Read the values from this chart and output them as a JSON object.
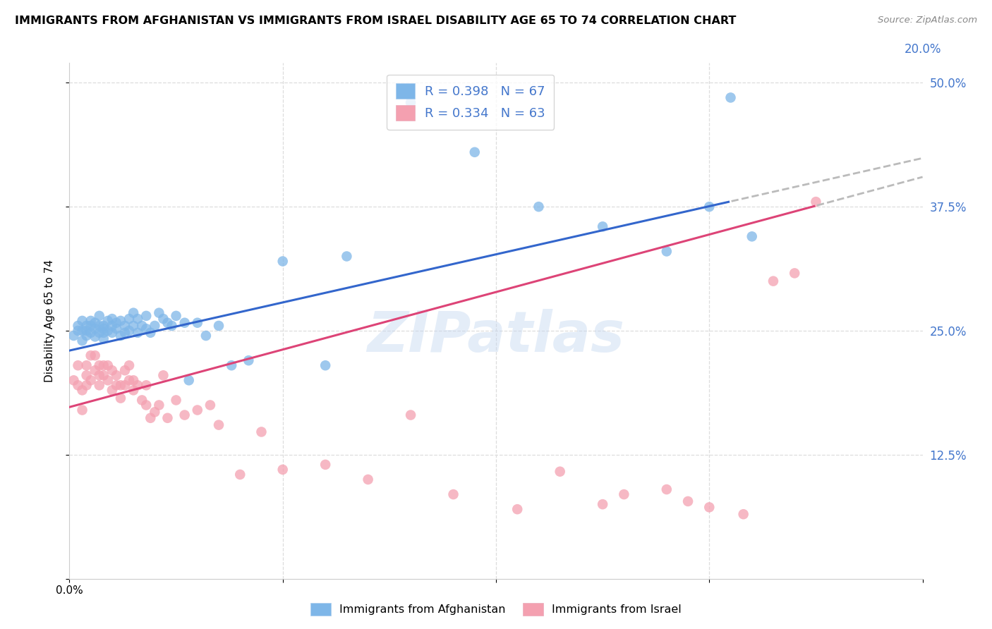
{
  "title": "IMMIGRANTS FROM AFGHANISTAN VS IMMIGRANTS FROM ISRAEL DISABILITY AGE 65 TO 74 CORRELATION CHART",
  "source": "Source: ZipAtlas.com",
  "ylabel": "Disability Age 65 to 74",
  "xlim": [
    0.0,
    0.2
  ],
  "ylim": [
    0.0,
    0.52
  ],
  "afghanistan_color": "#7EB6E8",
  "israel_color": "#F4A0B0",
  "afghanistan_R": 0.398,
  "afghanistan_N": 67,
  "israel_R": 0.334,
  "israel_N": 63,
  "afghanistan_line_color": "#3366CC",
  "israel_line_color": "#DD4477",
  "trend_extension_color": "#BBBBBB",
  "watermark": "ZIPatlas",
  "legend_label_afg": "Immigrants from Afghanistan",
  "legend_label_isr": "Immigrants from Israel",
  "right_ytick_color": "#4477CC",
  "right_xtick_color": "#4477CC",
  "afghanistan_x": [
    0.001,
    0.002,
    0.002,
    0.003,
    0.003,
    0.003,
    0.004,
    0.004,
    0.004,
    0.005,
    0.005,
    0.005,
    0.006,
    0.006,
    0.006,
    0.007,
    0.007,
    0.007,
    0.008,
    0.008,
    0.008,
    0.008,
    0.009,
    0.009,
    0.01,
    0.01,
    0.01,
    0.011,
    0.011,
    0.012,
    0.012,
    0.013,
    0.013,
    0.014,
    0.014,
    0.015,
    0.015,
    0.016,
    0.016,
    0.017,
    0.018,
    0.018,
    0.019,
    0.02,
    0.021,
    0.022,
    0.023,
    0.024,
    0.025,
    0.027,
    0.028,
    0.03,
    0.032,
    0.035,
    0.038,
    0.042,
    0.05,
    0.06,
    0.065,
    0.08,
    0.095,
    0.11,
    0.125,
    0.14,
    0.15,
    0.155,
    0.16
  ],
  "afghanistan_y": [
    0.245,
    0.25,
    0.255,
    0.26,
    0.25,
    0.24,
    0.255,
    0.25,
    0.245,
    0.26,
    0.255,
    0.248,
    0.252,
    0.258,
    0.244,
    0.255,
    0.248,
    0.265,
    0.252,
    0.248,
    0.255,
    0.242,
    0.26,
    0.25,
    0.255,
    0.262,
    0.248,
    0.258,
    0.252,
    0.26,
    0.245,
    0.255,
    0.248,
    0.262,
    0.25,
    0.255,
    0.268,
    0.262,
    0.248,
    0.255,
    0.265,
    0.252,
    0.248,
    0.255,
    0.268,
    0.262,
    0.258,
    0.255,
    0.265,
    0.258,
    0.2,
    0.258,
    0.245,
    0.255,
    0.215,
    0.22,
    0.32,
    0.215,
    0.325,
    0.48,
    0.43,
    0.375,
    0.355,
    0.33,
    0.375,
    0.485,
    0.345
  ],
  "israel_x": [
    0.001,
    0.002,
    0.002,
    0.003,
    0.003,
    0.004,
    0.004,
    0.004,
    0.005,
    0.005,
    0.006,
    0.006,
    0.007,
    0.007,
    0.007,
    0.008,
    0.008,
    0.009,
    0.009,
    0.01,
    0.01,
    0.011,
    0.011,
    0.012,
    0.012,
    0.013,
    0.013,
    0.014,
    0.014,
    0.015,
    0.015,
    0.016,
    0.017,
    0.018,
    0.018,
    0.019,
    0.02,
    0.021,
    0.022,
    0.023,
    0.025,
    0.027,
    0.03,
    0.033,
    0.035,
    0.04,
    0.045,
    0.05,
    0.06,
    0.07,
    0.08,
    0.09,
    0.105,
    0.115,
    0.125,
    0.13,
    0.14,
    0.145,
    0.15,
    0.158,
    0.165,
    0.17,
    0.175
  ],
  "israel_y": [
    0.2,
    0.195,
    0.215,
    0.17,
    0.19,
    0.205,
    0.195,
    0.215,
    0.2,
    0.225,
    0.21,
    0.225,
    0.215,
    0.205,
    0.195,
    0.215,
    0.205,
    0.2,
    0.215,
    0.19,
    0.21,
    0.195,
    0.205,
    0.195,
    0.182,
    0.21,
    0.195,
    0.2,
    0.215,
    0.19,
    0.2,
    0.195,
    0.18,
    0.175,
    0.195,
    0.162,
    0.168,
    0.175,
    0.205,
    0.162,
    0.18,
    0.165,
    0.17,
    0.175,
    0.155,
    0.105,
    0.148,
    0.11,
    0.115,
    0.1,
    0.165,
    0.085,
    0.07,
    0.108,
    0.075,
    0.085,
    0.09,
    0.078,
    0.072,
    0.065,
    0.3,
    0.308,
    0.38
  ]
}
